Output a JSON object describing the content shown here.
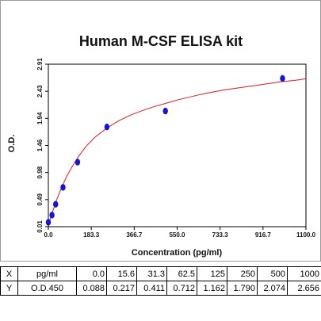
{
  "colors": {
    "curve": "#e8141e",
    "point": "#1515d8",
    "axis": "#000000"
  },
  "chart_data": {
    "type": "scatter",
    "title": "Human M-CSF ELISA kit",
    "xlabel": "Concentration (pg/ml)",
    "ylabel": "O.D.",
    "xlim": [
      0,
      1100
    ],
    "ylim": [
      0.01,
      2.91
    ],
    "x_ticks": [
      "0.0",
      "183.3",
      "366.7",
      "550.0",
      "733.3",
      "916.7",
      "1100.0"
    ],
    "y_ticks": [
      "0.01",
      "0.49",
      "0.98",
      "1.46",
      "1.94",
      "2.43",
      "2.91"
    ],
    "series": [
      {
        "type": "scatter",
        "x": [
          0.0,
          15.6,
          31.3,
          62.5,
          125,
          250,
          500,
          1000
        ],
        "y": [
          0.088,
          0.217,
          0.411,
          0.712,
          1.162,
          1.79,
          2.074,
          2.656
        ]
      },
      {
        "type": "line",
        "x": [
          0,
          20,
          40,
          60,
          80,
          100,
          130,
          160,
          200,
          250,
          300,
          350,
          400,
          450,
          500,
          550,
          600,
          650,
          700,
          750,
          800,
          850,
          900,
          950,
          1000,
          1050,
          1100
        ],
        "y": [
          0.05,
          0.3,
          0.54,
          0.74,
          0.92,
          1.07,
          1.27,
          1.44,
          1.61,
          1.77,
          1.9,
          2.0,
          2.08,
          2.15,
          2.21,
          2.27,
          2.32,
          2.37,
          2.41,
          2.45,
          2.48,
          2.51,
          2.54,
          2.57,
          2.6,
          2.62,
          2.65
        ]
      }
    ]
  },
  "table": {
    "rows": [
      [
        "X",
        "pg/ml",
        "0.0",
        "15.6",
        "31.3",
        "62.5",
        "125",
        "250",
        "500",
        "1000"
      ],
      [
        "Y",
        "O.D.450",
        "0.088",
        "0.217",
        "0.411",
        "0.712",
        "1.162",
        "1.790",
        "2.074",
        "2.656"
      ]
    ]
  }
}
